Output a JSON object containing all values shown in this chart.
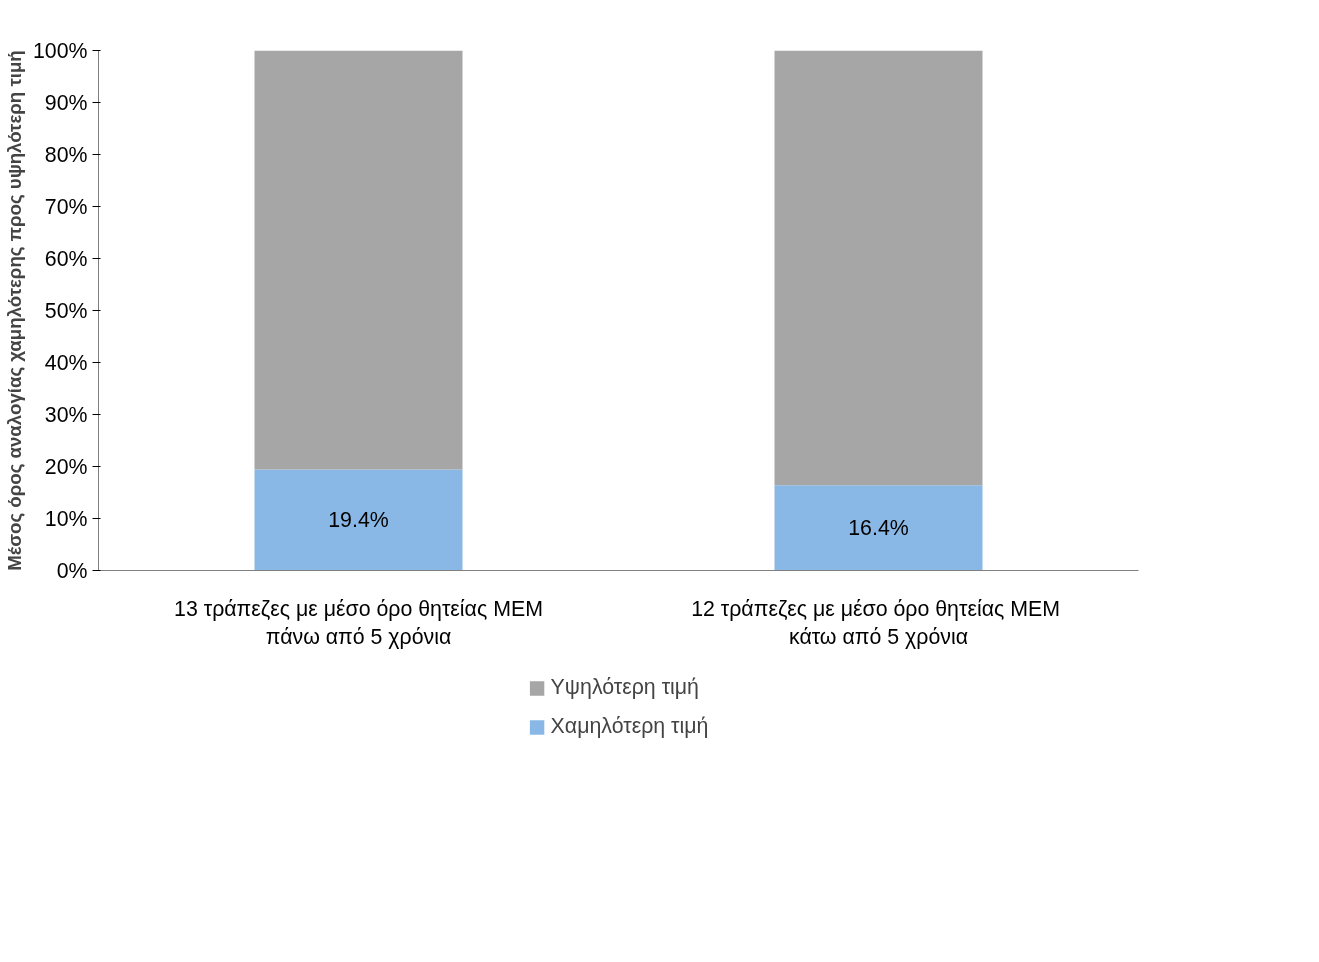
{
  "chart_data": {
    "type": "bar",
    "stacked": true,
    "ylabel": "Μέσος όρος αναλογίας χαμηλότερης προς υψηλότερη τιμή",
    "categories": [
      "13 τράπεζες με μέσο όρο θητείας ΜΕΜ\nπάνω από 5 χρόνια",
      "12 τράπεζες με μέσο όρο θητείας  ΜΕΜ\nκάτω από 5 χρόνια"
    ],
    "series": [
      {
        "name": "Χαμηλότερη τιμή",
        "color": "#8ab8e6",
        "values": [
          19.4,
          16.4
        ],
        "value_labels": [
          "19.4%",
          "16.4%"
        ]
      },
      {
        "name": "Υψηλότερη τιμή",
        "color": "#a6a6a6",
        "values": [
          80.6,
          83.6
        ]
      }
    ],
    "ylim": [
      0,
      100
    ],
    "yticks": [
      {
        "value": 0,
        "label": "0%"
      },
      {
        "value": 10,
        "label": "10%"
      },
      {
        "value": 20,
        "label": "20%"
      },
      {
        "value": 30,
        "label": "30%"
      },
      {
        "value": 40,
        "label": "40%"
      },
      {
        "value": 50,
        "label": "50%"
      },
      {
        "value": 60,
        "label": "60%"
      },
      {
        "value": 70,
        "label": "70%"
      },
      {
        "value": 80,
        "label": "80%"
      },
      {
        "value": 90,
        "label": "90%"
      },
      {
        "value": 100,
        "label": "100%"
      }
    ],
    "grid": false,
    "legend": "bottom"
  }
}
